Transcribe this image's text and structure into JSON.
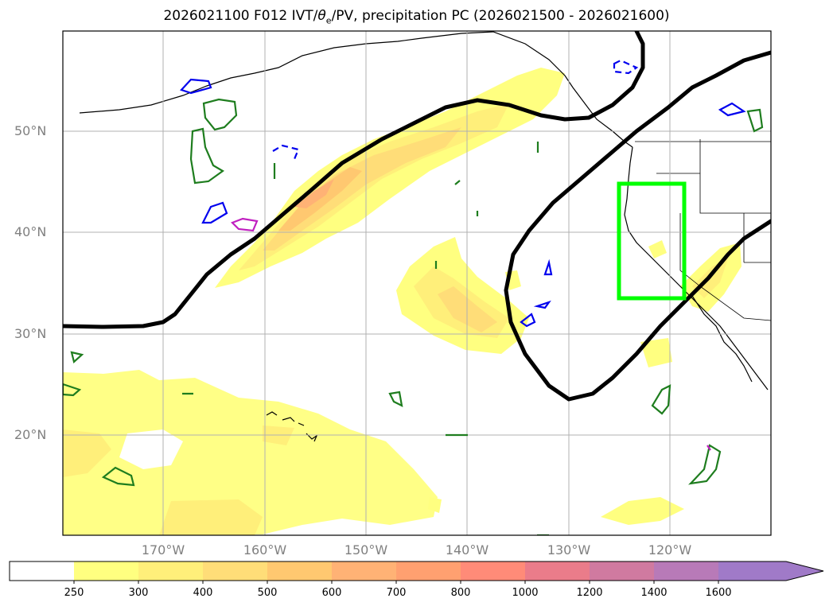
{
  "title_prefix": "2026021100 F012 IVT/",
  "theta_sym": "θ",
  "theta_sub": "e",
  "title_suffix": "/PV, precipitation PC (2026021500 - 2026021600)",
  "lat_labels": [
    "50°N",
    "40°N",
    "30°N",
    "20°N"
  ],
  "lon_labels": [
    "170°W",
    "160°W",
    "150°W",
    "140°W",
    "130°W",
    "120°W"
  ],
  "colorbar": {
    "ticks": [
      "250",
      "300",
      "400",
      "500",
      "600",
      "700",
      "800",
      "1000",
      "1200",
      "1400",
      "1600"
    ],
    "colors": [
      "#ffffff",
      "#ffff80",
      "#ffef7a",
      "#ffdd78",
      "#ffc870",
      "#ffb275",
      "#ffa070",
      "#ff8b78",
      "#ea7c8a",
      "#d07aa0",
      "#b87ab8",
      "#a07ac8"
    ]
  },
  "colors": {
    "jet": "#000000",
    "box": "#00ff00",
    "pv_pos": "#1e7d1e",
    "pv_neg": "#0000ee",
    "pv_mag": "#c020c0",
    "grid": "#b0b0b0"
  }
}
